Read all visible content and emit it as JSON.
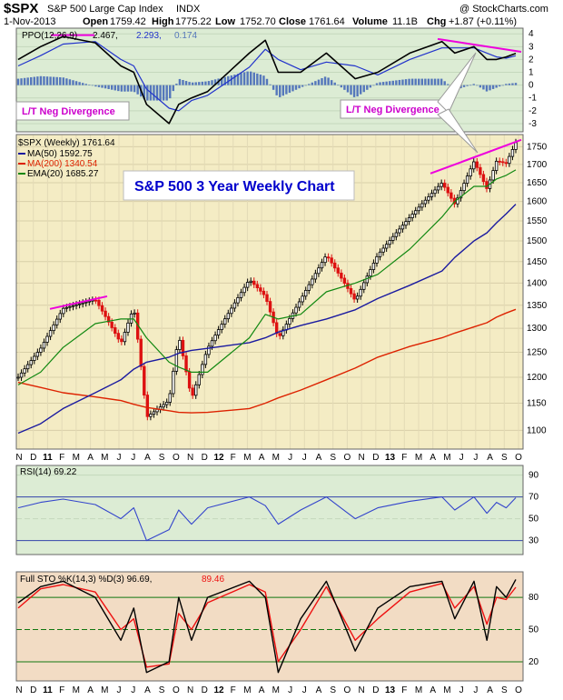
{
  "header": {
    "symbol": "$SPX",
    "name": "S&P 500 Large Cap Index",
    "exchange": "INDX",
    "watermark": "@ StockCharts.com",
    "date": "1-Nov-2013",
    "open_label": "Open",
    "open": "1759.42",
    "high_label": "High",
    "high": "1775.22",
    "low_label": "Low",
    "low": "1752.70",
    "close_label": "Close",
    "close": "1761.64",
    "volume_label": "Volume",
    "volume": "11.1B",
    "chg_label": "Chg",
    "chg": "+1.87 (+0.11%)"
  },
  "colors": {
    "price_bg": "#f4ecc4",
    "indicator_bg": "#dcecd4",
    "bottom_bg": "#f2dcc4",
    "ma50": "#1a1aa0",
    "ma200": "#dd2200",
    "ema20": "#118811",
    "ppo": "#000000",
    "ppo_signal": "#2233cc",
    "hist": "#5577bb",
    "rsi": "#3344cc",
    "sto_k": "#000000",
    "sto_d": "#ee1111",
    "up_candle": "#000000",
    "down_candle": "#dd1111",
    "divergence": "#ee00dd"
  },
  "legend": {
    "ppo": "PPO(12,26,9)",
    "ppo_val": "2.467,",
    "ppo_signal": "2.293,",
    "ppo_hist": "0.174",
    "price": "$SPX (Weekly) 1761.64",
    "ma50": "MA(50) 1592.75",
    "ma200": "MA(200) 1340.54",
    "ema20": "EMA(20) 1685.27",
    "rsi": "RSI(14) 69.22",
    "sto": "Full STO %K(14,3) %D(3) 96.69,",
    "sto_d": "89.46"
  },
  "annotations": {
    "title": "S&P 500 3 Year Weekly Chart",
    "div_left": "L/T Neg Divergence",
    "div_right": "L/T Neg Divergence"
  },
  "chart_data": {
    "type": "line",
    "title": "S&P 500 3 Year Weekly Chart",
    "price_axis": {
      "ticks": [
        1100,
        1150,
        1200,
        1250,
        1300,
        1350,
        1400,
        1450,
        1500,
        1550,
        1600,
        1650,
        1700,
        1750
      ],
      "scale": "log",
      "ylim": [
        1070,
        1780
      ]
    },
    "ppo_axis": {
      "ticks": [
        4,
        3,
        2,
        1,
        0,
        -1,
        -2,
        -3
      ],
      "ylim": [
        -3.5,
        4.3
      ]
    },
    "rsi_axis": {
      "ticks": [
        90,
        70,
        50,
        30
      ],
      "ylim": [
        18,
        98
      ]
    },
    "sto_axis": {
      "ticks": [
        80,
        50,
        20
      ],
      "ylim": [
        3,
        103
      ]
    },
    "month_labels": [
      "N",
      "D",
      "11",
      "F",
      "M",
      "A",
      "M",
      "J",
      "J",
      "A",
      "S",
      "O",
      "N",
      "D",
      "12",
      "F",
      "M",
      "A",
      "M",
      "J",
      "J",
      "A",
      "S",
      "O",
      "N",
      "D",
      "13",
      "F",
      "M",
      "A",
      "M",
      "J",
      "J",
      "A",
      "S",
      "O"
    ],
    "weeks": [
      "2010-11-12",
      "2010-12-31",
      "2011-02-18",
      "2011-04-29",
      "2011-06-24",
      "2011-07-22",
      "2011-08-19",
      "2011-10-07",
      "2011-10-28",
      "2011-11-25",
      "2011-12-30",
      "2012-03-30",
      "2012-05-04",
      "2012-06-01",
      "2012-07-20",
      "2012-09-14",
      "2012-11-16",
      "2013-01-04",
      "2013-03-15",
      "2013-05-24",
      "2013-06-21",
      "2013-08-02",
      "2013-08-30",
      "2013-09-20",
      "2013-10-11",
      "2013-11-01"
    ],
    "close": [
      1200,
      1258,
      1343,
      1363,
      1268,
      1346,
      1124,
      1155,
      1285,
      1158,
      1258,
      1408,
      1370,
      1278,
      1363,
      1466,
      1360,
      1466,
      1560,
      1650,
      1592,
      1709,
      1633,
      1710,
      1703,
      1762
    ],
    "ma50": [
      1095,
      1112,
      1140,
      1170,
      1195,
      1216,
      1230,
      1240,
      1248,
      1254,
      1258,
      1270,
      1280,
      1292,
      1306,
      1320,
      1340,
      1365,
      1395,
      1428,
      1460,
      1500,
      1520,
      1545,
      1568,
      1593
    ],
    "ma200": [
      1190,
      1180,
      1170,
      1162,
      1155,
      1148,
      1142,
      1136,
      1133,
      1132,
      1133,
      1140,
      1150,
      1160,
      1175,
      1195,
      1218,
      1240,
      1262,
      1280,
      1290,
      1303,
      1312,
      1324,
      1333,
      1341
    ],
    "ema20": [
      1185,
      1210,
      1260,
      1310,
      1320,
      1320,
      1280,
      1230,
      1220,
      1210,
      1210,
      1280,
      1330,
      1320,
      1330,
      1380,
      1400,
      1420,
      1480,
      1560,
      1600,
      1640,
      1640,
      1660,
      1670,
      1685
    ],
    "ppo": [
      2.0,
      3.0,
      3.8,
      3.3,
      1.5,
      1.0,
      -1.5,
      -3.0,
      -1.5,
      -1.0,
      -0.5,
      2.5,
      3.5,
      1.0,
      1.0,
      2.5,
      0.5,
      1.0,
      2.5,
      3.4,
      2.5,
      3.0,
      2.0,
      2.0,
      2.2,
      2.467
    ],
    "ppo_signal": [
      1.5,
      2.3,
      3.2,
      3.4,
      2.0,
      1.5,
      -0.3,
      -1.8,
      -2.0,
      -1.2,
      -0.8,
      1.4,
      2.8,
      2.0,
      1.2,
      1.8,
      1.5,
      0.8,
      2.0,
      2.9,
      2.9,
      2.9,
      2.5,
      2.2,
      2.1,
      2.293
    ],
    "rsi": [
      60,
      65,
      68,
      63,
      50,
      60,
      30,
      40,
      58,
      45,
      60,
      70,
      62,
      45,
      58,
      70,
      50,
      60,
      66,
      70,
      58,
      70,
      55,
      65,
      60,
      69.22
    ],
    "sto_k": [
      75,
      90,
      95,
      80,
      40,
      70,
      10,
      20,
      80,
      40,
      80,
      95,
      80,
      10,
      60,
      95,
      30,
      70,
      90,
      95,
      60,
      95,
      40,
      90,
      80,
      96.69
    ],
    "sto_d": [
      70,
      88,
      92,
      85,
      50,
      60,
      15,
      18,
      65,
      50,
      75,
      92,
      85,
      20,
      50,
      90,
      40,
      60,
      85,
      93,
      70,
      90,
      55,
      80,
      78,
      89.46
    ]
  }
}
